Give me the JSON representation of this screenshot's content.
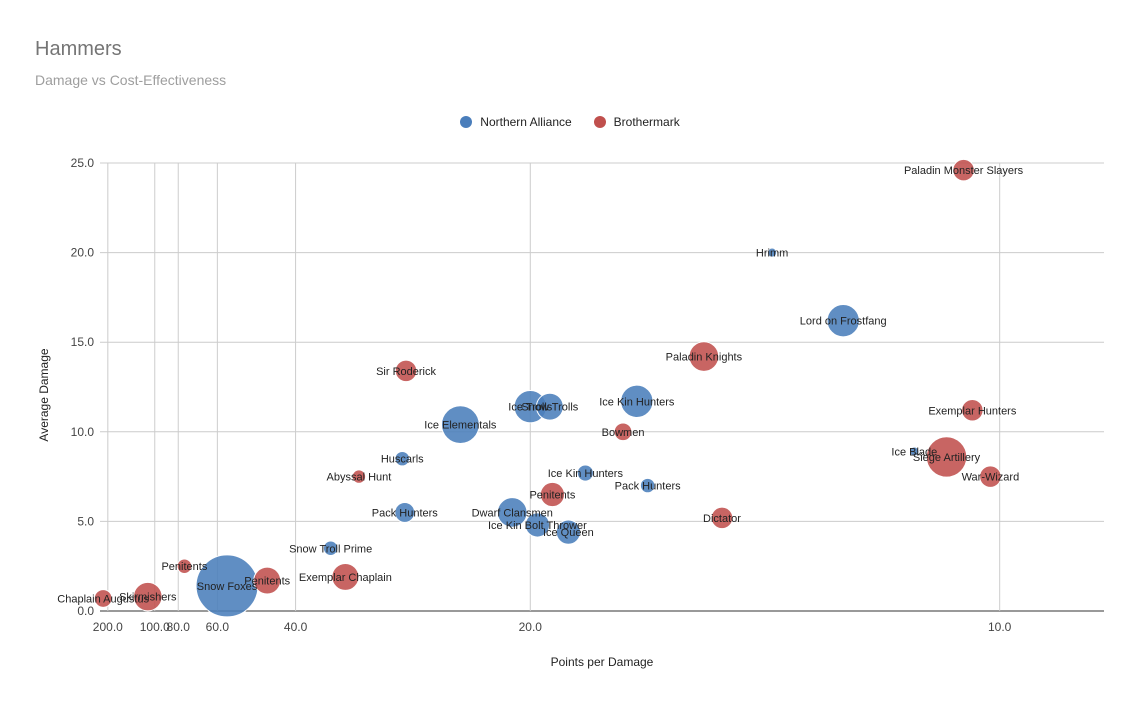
{
  "chart_data": {
    "type": "scatter",
    "title": "Hammers",
    "subtitle": "Damage vs Cost-Effectiveness",
    "xlabel": "Points per Damage",
    "ylabel": "Average Damage",
    "x_scale": "reciprocal",
    "xlim": [
      240,
      9
    ],
    "ylim": [
      0,
      25
    ],
    "x_ticks": [
      200,
      100,
      80,
      60,
      40,
      20,
      10
    ],
    "x_tick_labels": [
      "200.0",
      "100.0",
      "80.0",
      "60.0",
      "40.0",
      "20.0",
      "10.0"
    ],
    "y_ticks": [
      0,
      5,
      10,
      15,
      20,
      25
    ],
    "y_tick_labels": [
      "0.0",
      "5.0",
      "10.0",
      "15.0",
      "20.0",
      "25.0"
    ],
    "grid": true,
    "legend_position": "top",
    "series": [
      {
        "name": "Northern Alliance",
        "color": "#4a7ebb",
        "points": [
          {
            "label": "Hrimm",
            "x": 13.2,
            "y": 20.0,
            "size": 0.2
          },
          {
            "label": "Lord on Frostfang",
            "x": 12.0,
            "y": 16.2,
            "size": 4.5
          },
          {
            "label": "Ice Kin Hunters",
            "x": 16.3,
            "y": 11.7,
            "size": 4.5
          },
          {
            "label": "Ice Elementals",
            "x": 23.5,
            "y": 10.4,
            "size": 5.5
          },
          {
            "label": "Ice Blade",
            "x": 11.0,
            "y": 8.9,
            "size": 0.2
          },
          {
            "label": "Huscarls",
            "x": 27.5,
            "y": 8.5,
            "size": 1.2
          },
          {
            "label": "Ice Kin Hunters",
            "x": 17.9,
            "y": 7.7,
            "size": 1.5
          },
          {
            "label": "Pack Hunters",
            "x": 16.0,
            "y": 7.0,
            "size": 1.2
          },
          {
            "label": "Pack Hunters",
            "x": 27.3,
            "y": 5.5,
            "size": 2.2
          },
          {
            "label": "Dwarf Clansmen",
            "x": 20.8,
            "y": 5.5,
            "size": 4.0
          },
          {
            "label": "Ice Kin Bolt Thrower",
            "x": 19.7,
            "y": 4.8,
            "size": 3.0
          },
          {
            "label": "Ice Queen",
            "x": 18.5,
            "y": 4.4,
            "size": 3.0
          },
          {
            "label": "Snow Troll Prime",
            "x": 34.8,
            "y": 3.5,
            "size": 1.2
          },
          {
            "label": "Snow Foxes",
            "x": 56.5,
            "y": 1.4,
            "size": 10.0
          },
          {
            "label": "Ice Trolls",
            "x": 20.0,
            "y": 11.4,
            "size": 4.5
          },
          {
            "label": "Snow Trolls",
            "x": 19.2,
            "y": 11.4,
            "size": 3.5
          }
        ]
      },
      {
        "name": "Brothermark",
        "color": "#c0504d",
        "points": [
          {
            "label": "Paladin Monster Slayers",
            "x": 10.4,
            "y": 24.6,
            "size": 2.5
          },
          {
            "label": "Paladin Knights",
            "x": 14.6,
            "y": 14.2,
            "size": 4.0
          },
          {
            "label": "Sir Roderick",
            "x": 27.2,
            "y": 13.4,
            "size": 2.5
          },
          {
            "label": "Exemplar Hunters",
            "x": 10.3,
            "y": 11.2,
            "size": 2.5
          },
          {
            "label": "Bowmen",
            "x": 16.7,
            "y": 10.0,
            "size": 1.8
          },
          {
            "label": "Siege Artillery",
            "x": 10.6,
            "y": 8.6,
            "size": 6.0
          },
          {
            "label": "War-Wizard",
            "x": 10.1,
            "y": 7.5,
            "size": 2.5
          },
          {
            "label": "Abyssal Hunt",
            "x": 31.5,
            "y": 7.5,
            "size": 1.0
          },
          {
            "label": "Penitents",
            "x": 19.1,
            "y": 6.5,
            "size": 3.0
          },
          {
            "label": "Dictator",
            "x": 14.2,
            "y": 5.2,
            "size": 2.5
          },
          {
            "label": "Penitents",
            "x": 76.0,
            "y": 2.5,
            "size": 1.2
          },
          {
            "label": "Penitents",
            "x": 45.5,
            "y": 1.7,
            "size": 3.5
          },
          {
            "label": "Exemplar Chaplain",
            "x": 33.0,
            "y": 1.9,
            "size": 3.5
          },
          {
            "label": "Skirmishers",
            "x": 108.0,
            "y": 0.8,
            "size": 3.8
          },
          {
            "label": "Chaplain Augustus",
            "x": 222.0,
            "y": 0.7,
            "size": 1.8
          }
        ]
      }
    ]
  }
}
